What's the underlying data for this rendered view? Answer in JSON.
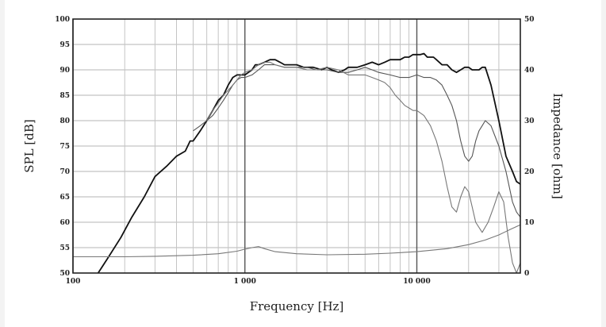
{
  "chart_data": {
    "type": "line",
    "xlabel": "Frequency [Hz]",
    "ylabel": "SPL [dB]",
    "y2label": "Impedance [ohm]",
    "xscale": "log",
    "xlim": [
      100,
      40000
    ],
    "ylim": [
      50,
      100
    ],
    "y2lim": [
      0,
      50
    ],
    "xticks": [
      {
        "value": 100,
        "label": "100"
      },
      {
        "value": 1000,
        "label": "1 000"
      },
      {
        "value": 10000,
        "label": "10 000"
      }
    ],
    "yticks": [
      50,
      55,
      60,
      65,
      70,
      75,
      80,
      85,
      90,
      95,
      100
    ],
    "y2ticks": [
      0,
      10,
      20,
      30,
      40,
      50
    ],
    "grid": true,
    "series": [
      {
        "color": "#111111",
        "width": 1.8,
        "axis": "left",
        "x": [
          140,
          160,
          190,
          220,
          260,
          300,
          350,
          400,
          450,
          480,
          500,
          550,
          600,
          650,
          700,
          750,
          800,
          850,
          900,
          950,
          1000,
          1050,
          1100,
          1150,
          1200,
          1300,
          1400,
          1500,
          1600,
          1700,
          1800,
          1900,
          2000,
          2200,
          2500,
          2800,
          3000,
          3200,
          3500,
          3800,
          4000,
          4500,
          5000,
          5500,
          6000,
          6500,
          7000,
          7500,
          8000,
          8500,
          9000,
          9500,
          10000,
          10500,
          11000,
          11500,
          12000,
          12500,
          13000,
          14000,
          15000,
          16000,
          17000,
          18000,
          19000,
          20000,
          21000,
          22000,
          23000,
          24000,
          25000,
          27000,
          30000,
          33000,
          36000,
          38000,
          40000
        ],
        "y": [
          50,
          53,
          57,
          61,
          65,
          69,
          71,
          73,
          74,
          76,
          76,
          78,
          80,
          82,
          84,
          85,
          87,
          88.5,
          89,
          89,
          89,
          89.5,
          90,
          91,
          91,
          91.5,
          92,
          92,
          91.5,
          91,
          91,
          91,
          91,
          90.5,
          90.5,
          90,
          90.5,
          90,
          89.5,
          90,
          90.5,
          90.5,
          91,
          91.5,
          91,
          91.5,
          92,
          92,
          92,
          92.5,
          92.5,
          93,
          93,
          93,
          93.2,
          92.5,
          92.5,
          92.5,
          92,
          91,
          91,
          90,
          89.5,
          90,
          90.5,
          90.5,
          90,
          90,
          90,
          90.5,
          90.5,
          87,
          80,
          73,
          70,
          68,
          67.5
        ]
      },
      {
        "color": "#555555",
        "width": 1.1,
        "axis": "left",
        "x": [
          500,
          550,
          600,
          650,
          700,
          750,
          800,
          850,
          900,
          950,
          1000,
          1100,
          1200,
          1300,
          1400,
          1500,
          1700,
          2000,
          2300,
          2600,
          3000,
          3500,
          4000,
          4500,
          5000,
          5500,
          6000,
          7000,
          8000,
          9000,
          10000,
          11000,
          12000,
          13000,
          14000,
          15000,
          16000,
          17000,
          18000,
          19000,
          20000,
          21000,
          22000,
          23000,
          24000,
          25000,
          27000,
          30000,
          33000,
          36000,
          38000,
          40000
        ],
        "y": [
          78,
          79,
          80,
          81,
          82.5,
          84,
          85.5,
          87,
          88,
          88.5,
          88.5,
          89,
          90,
          91,
          91,
          91,
          90.5,
          90.5,
          90.5,
          90,
          90,
          89.5,
          89.5,
          90,
          90.5,
          90,
          89.5,
          89,
          88.5,
          88.5,
          89,
          88.5,
          88.5,
          88,
          87,
          85,
          83,
          80,
          76,
          73,
          72,
          73,
          76,
          78,
          79,
          80,
          79,
          75,
          70,
          64,
          62,
          61
        ]
      },
      {
        "color": "#777777",
        "width": 1.1,
        "axis": "left",
        "x": [
          600,
          650,
          700,
          750,
          800,
          850,
          900,
          950,
          1000,
          1100,
          1200,
          1300,
          1400,
          1500,
          1700,
          2000,
          2300,
          2600,
          3000,
          3500,
          4000,
          4500,
          5000,
          5500,
          6000,
          6500,
          7000,
          7500,
          8000,
          8500,
          9000,
          9500,
          10000,
          11000,
          12000,
          13000,
          14000,
          15000,
          16000,
          17000,
          18000,
          19000,
          20000,
          21000,
          22000,
          24000,
          26000,
          28000,
          30000,
          32000,
          34000,
          36000,
          38000,
          40000
        ],
        "y": [
          80,
          82,
          83.5,
          85,
          86,
          87,
          88,
          89,
          89.5,
          90,
          91,
          91.5,
          91.5,
          91,
          90.5,
          90.5,
          90,
          90,
          90.5,
          90,
          89,
          89,
          89,
          88.5,
          88,
          87.5,
          86.5,
          85,
          84,
          83,
          82.5,
          82,
          82,
          81,
          79,
          76,
          72,
          67,
          63,
          62,
          65,
          67,
          66,
          63,
          60,
          58,
          60,
          63,
          66,
          64,
          57,
          52,
          50,
          52
        ]
      },
      {
        "color": "#777777",
        "width": 1.1,
        "axis": "right",
        "x": [
          100,
          200,
          300,
          500,
          700,
          900,
          1000,
          1100,
          1200,
          1300,
          1500,
          2000,
          3000,
          5000,
          7000,
          10000,
          15000,
          20000,
          25000,
          30000,
          35000,
          40000
        ],
        "y": [
          3.2,
          3.2,
          3.3,
          3.5,
          3.8,
          4.3,
          4.7,
          5,
          5.2,
          4.8,
          4.2,
          3.8,
          3.6,
          3.7,
          3.9,
          4.2,
          4.8,
          5.6,
          6.5,
          7.5,
          8.6,
          9.5
        ]
      }
    ]
  }
}
